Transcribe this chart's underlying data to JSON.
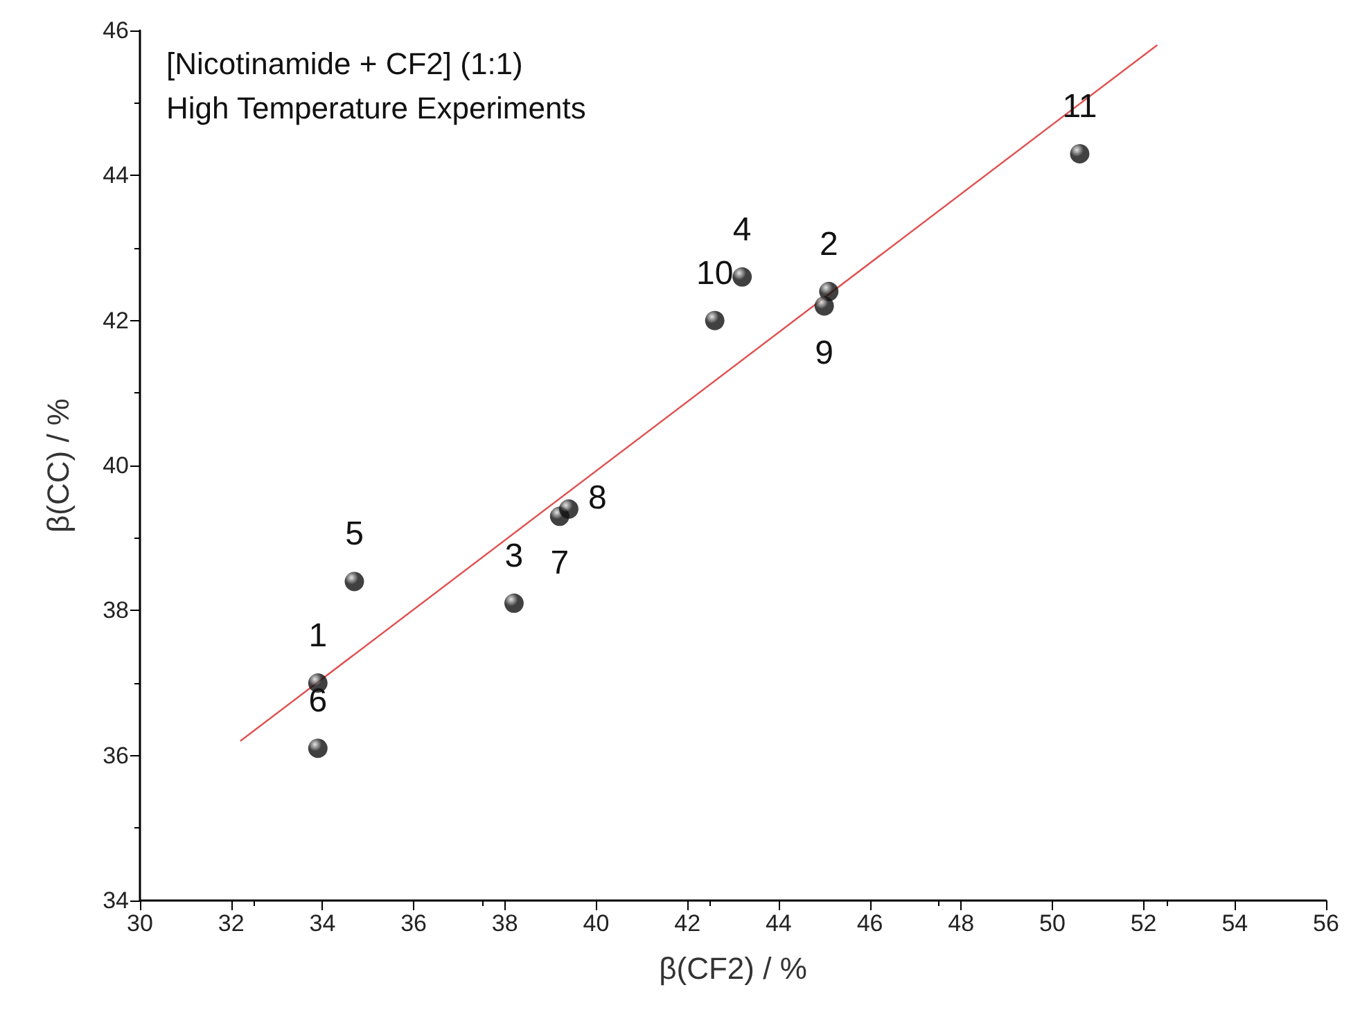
{
  "chart_data": {
    "type": "scatter",
    "title": "[Nicotinamide + CF2] (1:1)",
    "subtitle": "High Temperature Experiments",
    "xlabel": "β(CF2) / %",
    "ylabel": "β(CC) / %",
    "xlim": [
      30,
      56
    ],
    "ylim": [
      34,
      46
    ],
    "xticks": [
      30,
      32,
      34,
      36,
      38,
      40,
      42,
      44,
      46,
      48,
      50,
      52,
      54,
      56
    ],
    "yticks": [
      34,
      36,
      38,
      40,
      42,
      44,
      46
    ],
    "grid": false,
    "marker": "circle",
    "annotations": [
      {
        "text": "1",
        "x": 33.9,
        "y": 37.0
      },
      {
        "text": "2",
        "x": 45.1,
        "y": 42.4
      },
      {
        "text": "3",
        "x": 38.2,
        "y": 38.1
      },
      {
        "text": "4",
        "x": 43.2,
        "y": 42.6
      },
      {
        "text": "5",
        "x": 34.7,
        "y": 38.4
      },
      {
        "text": "6",
        "x": 33.9,
        "y": 36.1
      },
      {
        "text": "7",
        "x": 39.2,
        "y": 39.3
      },
      {
        "text": "8",
        "x": 39.4,
        "y": 39.4
      },
      {
        "text": "9",
        "x": 45.0,
        "y": 42.2
      },
      {
        "text": "10",
        "x": 42.6,
        "y": 42.0
      },
      {
        "text": "11",
        "x": 50.6,
        "y": 44.3
      }
    ],
    "series": [
      {
        "color": "#111111",
        "x": [
          33.9,
          45.1,
          38.2,
          43.2,
          34.7,
          33.9,
          39.2,
          39.4,
          45.0,
          42.6,
          50.6
        ],
        "values": [
          37.0,
          42.4,
          38.1,
          42.6,
          38.4,
          36.1,
          39.3,
          39.4,
          42.2,
          42.0,
          44.3
        ]
      },
      {
        "type": "line",
        "color": "#e05050",
        "marker": "none",
        "line_style": "solid",
        "x": [
          32.2,
          52.3
        ],
        "values": [
          36.2,
          45.8
        ]
      }
    ]
  }
}
